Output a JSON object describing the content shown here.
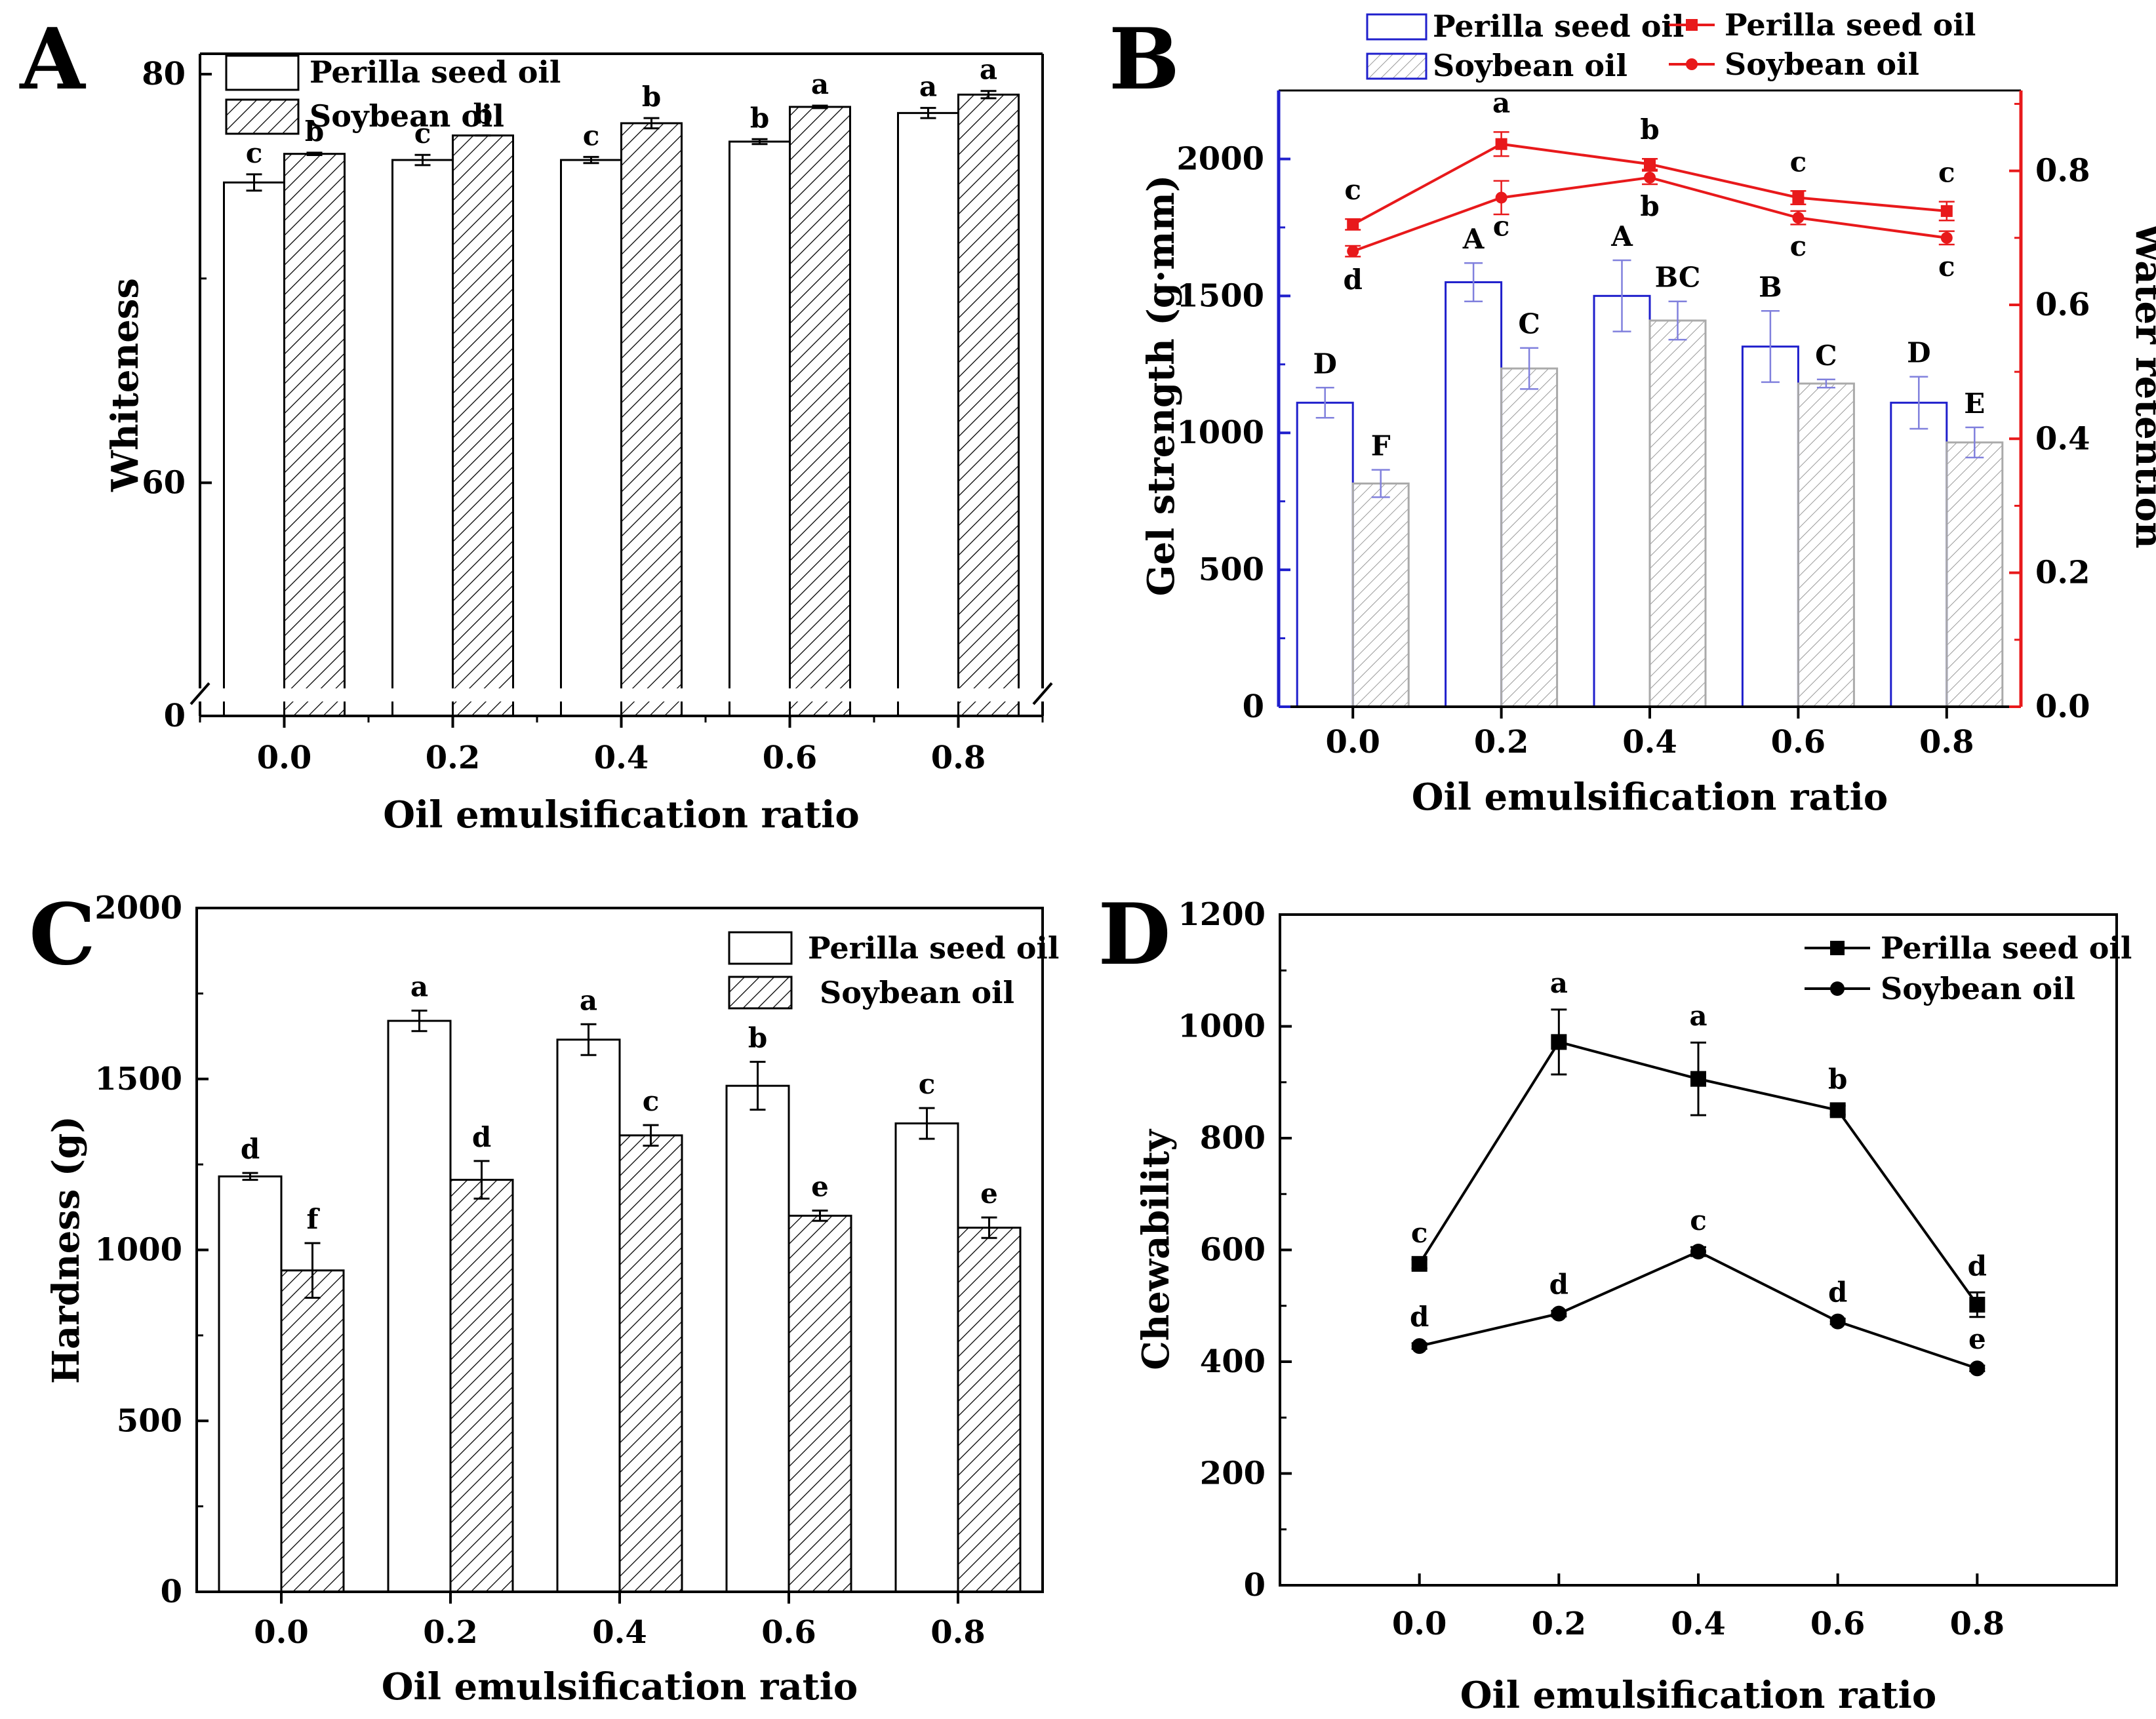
{
  "chart_data": [
    {
      "panel": "A",
      "type": "bar",
      "xlabel": "Oil emulsification ratio",
      "ylabel": "Whiteness",
      "categories": [
        "0.0",
        "0.2",
        "0.4",
        "0.6",
        "0.8"
      ],
      "axis_break": true,
      "ylim_upper": [
        50,
        81
      ],
      "yticks": [
        "0",
        "60",
        "80"
      ],
      "legend": {
        "position": "top-left",
        "entries": [
          "Perilla seed oil",
          "Soybean oil"
        ]
      },
      "series": [
        {
          "name": "Perilla seed oil",
          "fill": "white",
          "values": [
            74.7,
            75.8,
            75.8,
            76.7,
            78.1
          ],
          "errors": [
            0.4,
            0.25,
            0.15,
            0.12,
            0.25
          ],
          "letters": [
            "c",
            "c",
            "c",
            "b",
            "a"
          ]
        },
        {
          "name": "Soybean oil",
          "fill": "hatch",
          "values": [
            76.1,
            77.0,
            77.6,
            78.4,
            79.0
          ],
          "errors": [
            0.06,
            0.0,
            0.25,
            0.06,
            0.18
          ],
          "letters": [
            "b",
            "b",
            "b",
            "a",
            "a"
          ]
        }
      ]
    },
    {
      "panel": "B",
      "type": "bar",
      "xlabel": "Oil emulsification ratio",
      "ylabel": "Gel strength (g·mm)",
      "ylabel_right": "Water retention",
      "categories": [
        "0.0",
        "0.2",
        "0.4",
        "0.6",
        "0.8"
      ],
      "ylim": [
        0,
        2250
      ],
      "yticks": [
        "0",
        "500",
        "1000",
        "1500",
        "2000"
      ],
      "ylim_right": [
        0,
        0.92
      ],
      "yticks_right": [
        "0.0",
        "0.2",
        "0.4",
        "0.6",
        "0.8"
      ],
      "colors": {
        "bars": "#1f1fcc",
        "lines": "#e8191b"
      },
      "legend": {
        "position": "top",
        "entries": [
          "Perilla seed oil",
          "Soybean oil",
          "Perilla seed oil",
          "Soybean oil"
        ]
      },
      "series": [
        {
          "name": "Perilla seed oil",
          "kind": "bar",
          "fill": "white",
          "values": [
            1110,
            1550,
            1500,
            1315,
            1110
          ],
          "errors": [
            55,
            70,
            130,
            130,
            95
          ],
          "letters": [
            "D",
            "A",
            "A",
            "B",
            "D"
          ]
        },
        {
          "name": "Soybean oil",
          "kind": "bar",
          "fill": "hatch",
          "values": [
            815,
            1235,
            1410,
            1180,
            965
          ],
          "errors": [
            50,
            75,
            70,
            15,
            55
          ],
          "letters": [
            "F",
            "C",
            "BC",
            "C",
            "E"
          ]
        },
        {
          "name": "Perilla seed oil",
          "kind": "line",
          "marker": "square",
          "axis": "right",
          "values": [
            0.72,
            0.84,
            0.81,
            0.76,
            0.74
          ],
          "errors": [
            0.008,
            0.018,
            0.008,
            0.01,
            0.014
          ],
          "letters": [
            "c",
            "a",
            "b",
            "c",
            "c"
          ]
        },
        {
          "name": "Soybean oil",
          "kind": "line",
          "marker": "circle",
          "axis": "right",
          "values": [
            0.68,
            0.76,
            0.79,
            0.73,
            0.7
          ],
          "errors": [
            0.008,
            0.025,
            0.01,
            0.01,
            0.01
          ],
          "letters": [
            "d",
            "c",
            "b",
            "c",
            "c"
          ]
        }
      ]
    },
    {
      "panel": "C",
      "type": "bar",
      "xlabel": "Oil emulsification ratio",
      "ylabel": "Hardness (g)",
      "categories": [
        "0.0",
        "0.2",
        "0.4",
        "0.6",
        "0.8"
      ],
      "ylim": [
        0,
        2000
      ],
      "yticks": [
        "0",
        "500",
        "1000",
        "1500",
        "2000"
      ],
      "legend": {
        "position": "top-right",
        "entries": [
          "Perilla seed oil",
          "Soybean oil"
        ]
      },
      "series": [
        {
          "name": "Perilla seed oil",
          "fill": "white",
          "values": [
            1215,
            1670,
            1615,
            1480,
            1370
          ],
          "errors": [
            10,
            30,
            45,
            70,
            45
          ],
          "letters": [
            "d",
            "a",
            "a",
            "b",
            "c"
          ]
        },
        {
          "name": "Soybean oil",
          "fill": "hatch",
          "values": [
            940,
            1205,
            1335,
            1100,
            1065
          ],
          "errors": [
            80,
            55,
            30,
            15,
            30
          ],
          "letters": [
            "f",
            "d",
            "c",
            "e",
            "e"
          ]
        }
      ]
    },
    {
      "panel": "D",
      "type": "line",
      "xlabel": "Oil emulsification ratio",
      "ylabel": "Chewability",
      "x": [
        0.0,
        0.2,
        0.4,
        0.6,
        0.8
      ],
      "xticks": [
        "0.0",
        "0.2",
        "0.4",
        "0.6",
        "0.8"
      ],
      "xlim": [
        -0.2,
        1.0
      ],
      "ylim": [
        0,
        1200
      ],
      "yticks": [
        "0",
        "200",
        "400",
        "600",
        "800",
        "1000",
        "1200"
      ],
      "legend": {
        "position": "top-right",
        "entries": [
          "Perilla seed oil",
          "Soybean oil"
        ]
      },
      "series": [
        {
          "name": "Perilla seed oil",
          "marker": "square",
          "values": [
            575,
            972,
            906,
            850,
            502
          ],
          "errors": [
            8,
            58,
            65,
            8,
            22
          ],
          "letters": [
            "c",
            "a",
            "a",
            "b",
            "d"
          ]
        },
        {
          "name": "Soybean oil",
          "marker": "circle",
          "values": [
            428,
            486,
            597,
            472,
            388
          ],
          "errors": [
            5,
            5,
            8,
            5,
            5
          ],
          "letters": [
            "d",
            "d",
            "c",
            "d",
            "e"
          ]
        }
      ]
    }
  ]
}
